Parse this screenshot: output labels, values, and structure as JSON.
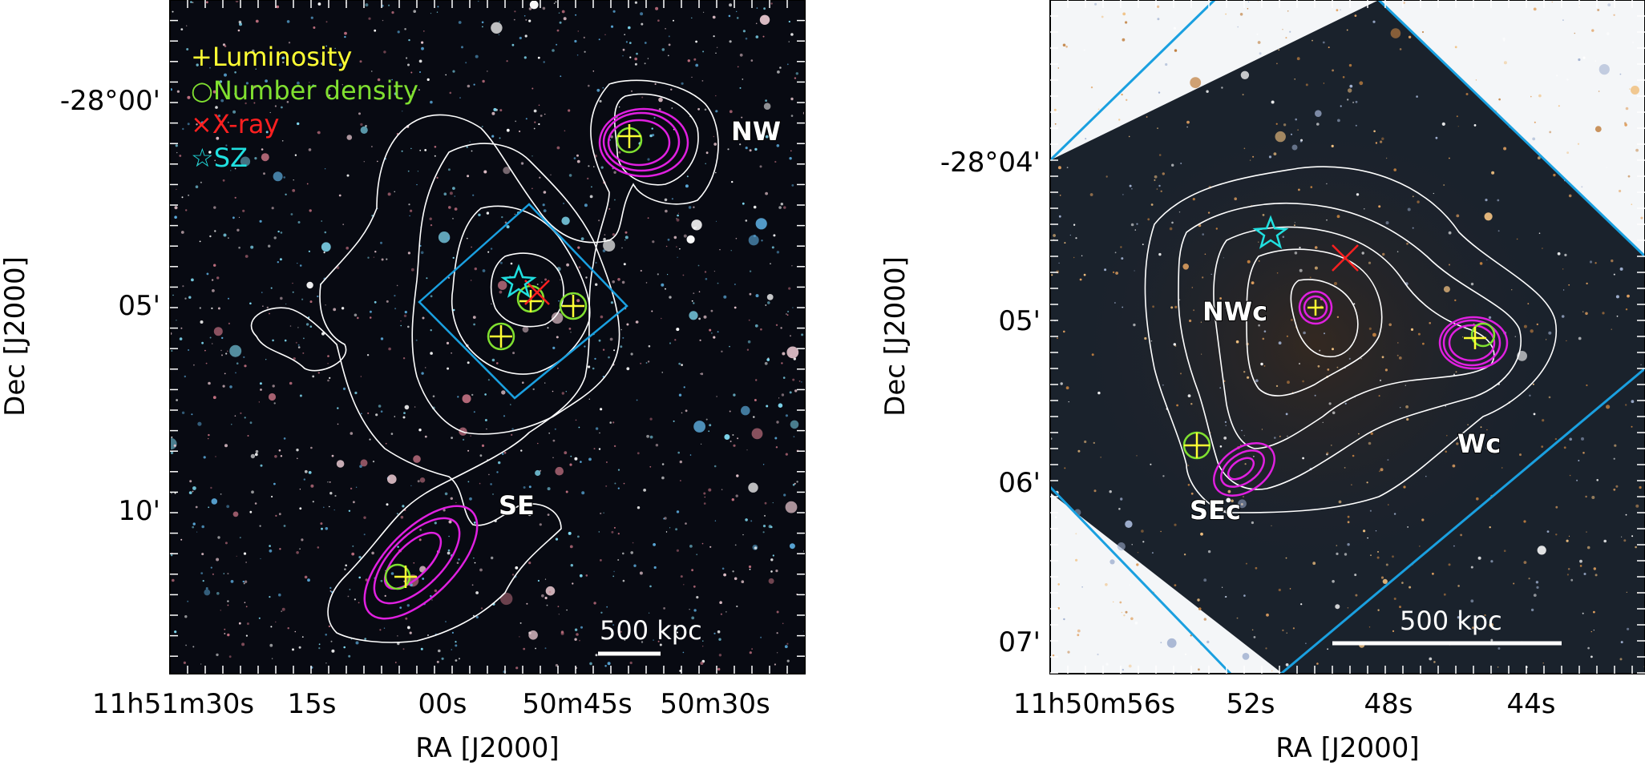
{
  "left_panel": {
    "legend": [
      {
        "symbol": "+",
        "label": "Luminosity",
        "color": "#ffff33"
      },
      {
        "symbol": "○",
        "label": "Number density",
        "color": "#80e030"
      },
      {
        "symbol": "×",
        "label": "X-ray",
        "color": "#ff2020"
      },
      {
        "symbol": "☆",
        "label": "SZ",
        "color": "#20e0e0"
      }
    ],
    "regions": [
      "NW",
      "SE"
    ],
    "scale_bar": "500 kpc",
    "ra_ticks": [
      "11h51m30s",
      "15s",
      "00s",
      "50m45s",
      "50m30s"
    ],
    "dec_ticks": [
      "-28°00'",
      "05'",
      "10'"
    ],
    "xlabel": "RA [J2000]",
    "ylabel": "Dec [J2000]"
  },
  "right_panel": {
    "regions": [
      "NWc",
      "Wc",
      "SEc"
    ],
    "scale_bar": "500 kpc",
    "ra_ticks": [
      "11h50m56s",
      "52s",
      "48s",
      "44s"
    ],
    "dec_ticks": [
      "-28°04'",
      "05'",
      "06'",
      "07'"
    ],
    "xlabel": "RA [J2000]",
    "ylabel": "Dec [J2000]"
  },
  "colors": {
    "background_sky": "#0a0d14",
    "contour_white": "#ffffff",
    "contour_magenta": "#e020e0",
    "footprint_blue": "#1aa0e0",
    "luminosity": "#ffff33",
    "number_density": "#80e030",
    "xray": "#ff2020",
    "sz": "#20e0e0"
  }
}
